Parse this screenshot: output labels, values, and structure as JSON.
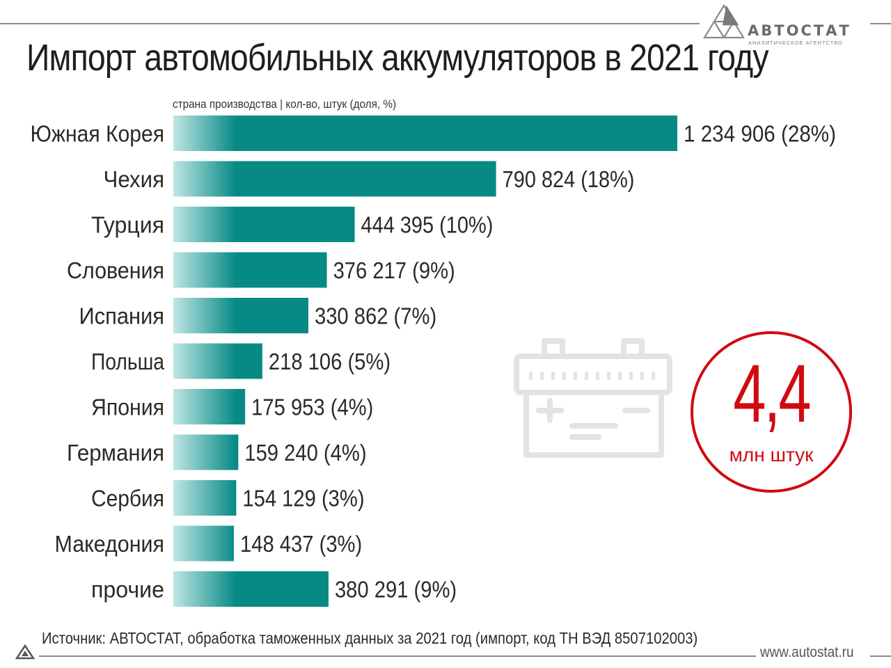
{
  "brand": {
    "name": "АВТОСТАТ",
    "tagline": "АНАЛИТИЧЕСКОЕ АГЕНТСТВО",
    "url": "www.autostat.ru"
  },
  "header": {
    "title": "Импорт автомобильных аккумуляторов в 2021 году",
    "subtitle": "страна производства | кол-во, штук (доля, %)"
  },
  "total": {
    "value": "4,4",
    "unit": "млн штук"
  },
  "footer": {
    "source": "Источник: АВТОСТАТ, обработка таможенных данных за 2021 год (импорт, код ТН ВЭД 8507102003)"
  },
  "icons": {
    "battery": "battery-icon",
    "logo": "autostat-logo-icon",
    "corner": "triangle-mark-icon"
  },
  "colors": {
    "bar": "#078a85",
    "bar_fade": "#bfe6e4",
    "accent_red": "#d10a11",
    "icon_gray": "#e3e3e3"
  },
  "chart_data": {
    "type": "bar",
    "orientation": "horizontal",
    "categories": [
      "Южная Корея",
      "Чехия",
      "Турция",
      "Словения",
      "Испания",
      "Польша",
      "Япония",
      "Германия",
      "Сербия",
      "Македония",
      "прочие"
    ],
    "values": [
      1234906,
      790824,
      444395,
      376217,
      330862,
      218106,
      175953,
      159240,
      154129,
      148437,
      380291
    ],
    "value_labels": [
      "1 234 906 (28%)",
      "790 824 (18%)",
      "444 395 (10%)",
      "376 217 (9%)",
      "330 862 (7%)",
      "218 106 (5%)",
      "175 953 (4%)",
      "159 240 (4%)",
      "154 129 (3%)",
      "148 437 (3%)",
      "380 291 (9%)"
    ],
    "shares_percent": [
      28,
      18,
      10,
      9,
      7,
      5,
      4,
      4,
      3,
      3,
      9
    ],
    "title": "Импорт автомобильных аккумуляторов в 2021 году",
    "grid": false,
    "legend": "none"
  }
}
